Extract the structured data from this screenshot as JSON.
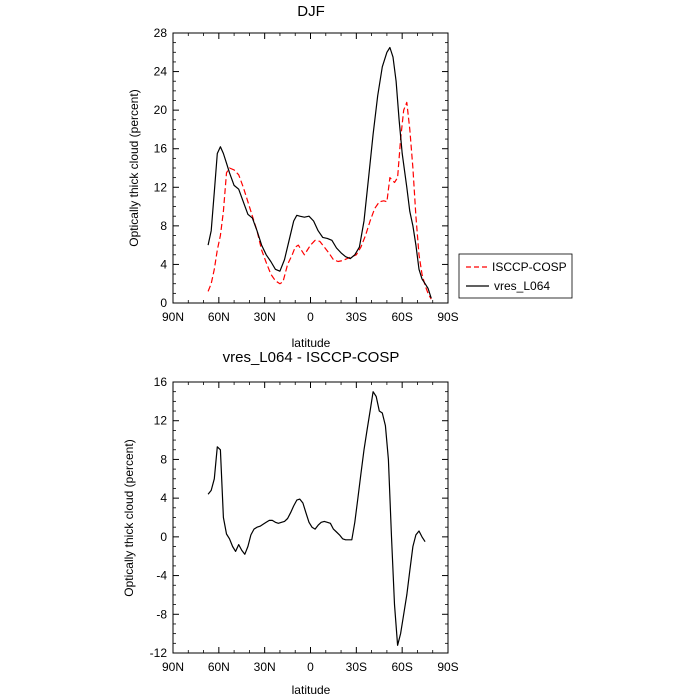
{
  "chart_data": [
    {
      "type": "line",
      "title": "DJF",
      "xlabel": "latitude",
      "ylabel": "Optically thick cloud (percent)",
      "xlim": [
        90,
        -90
      ],
      "ylim": [
        0,
        28
      ],
      "x_ticks": [
        90,
        60,
        30,
        0,
        -30,
        -60,
        -90
      ],
      "x_tick_labels": [
        "90N",
        "60N",
        "30N",
        "0",
        "30S",
        "60S",
        "90S"
      ],
      "y_ticks": [
        0,
        4,
        8,
        12,
        16,
        20,
        24,
        28
      ],
      "y_tick_labels": [
        "0",
        "4",
        "8",
        "12",
        "16",
        "20",
        "24",
        "28"
      ],
      "legend": {
        "placement": "right",
        "items": [
          "ISCCP-COSP",
          "vres_L064"
        ]
      },
      "series": [
        {
          "name": "ISCCP-COSP",
          "color": "#ff0000",
          "dash": "dashed",
          "points": [
            [
              67,
              1.2
            ],
            [
              65,
              2.0
            ],
            [
              63,
              3.5
            ],
            [
              61,
              5.5
            ],
            [
              59,
              7.0
            ],
            [
              57,
              9.5
            ],
            [
              55,
              13.5
            ],
            [
              53,
              14.0
            ],
            [
              50,
              13.8
            ],
            [
              47,
              13.3
            ],
            [
              44,
              12.0
            ],
            [
              41,
              10.5
            ],
            [
              38,
              9.0
            ],
            [
              35,
              7.5
            ],
            [
              32,
              5.5
            ],
            [
              29,
              4.2
            ],
            [
              26,
              3.0
            ],
            [
              23,
              2.3
            ],
            [
              20,
              2.0
            ],
            [
              18,
              2.2
            ],
            [
              15,
              4.0
            ],
            [
              12,
              5.0
            ],
            [
              10,
              5.8
            ],
            [
              8,
              6.0
            ],
            [
              6,
              5.5
            ],
            [
              4,
              5.0
            ],
            [
              2,
              5.5
            ],
            [
              0,
              6.0
            ],
            [
              -3,
              6.5
            ],
            [
              -6,
              6.4
            ],
            [
              -9,
              5.8
            ],
            [
              -12,
              5.2
            ],
            [
              -15,
              4.5
            ],
            [
              -18,
              4.3
            ],
            [
              -21,
              4.4
            ],
            [
              -24,
              4.6
            ],
            [
              -27,
              4.8
            ],
            [
              -30,
              5.0
            ],
            [
              -33,
              5.8
            ],
            [
              -36,
              7.0
            ],
            [
              -39,
              8.5
            ],
            [
              -42,
              9.8
            ],
            [
              -45,
              10.5
            ],
            [
              -48,
              10.6
            ],
            [
              -50,
              10.5
            ],
            [
              -52,
              13.0
            ],
            [
              -55,
              12.5
            ],
            [
              -57,
              13.0
            ],
            [
              -59,
              17.0
            ],
            [
              -61,
              20.0
            ],
            [
              -63,
              20.8
            ],
            [
              -65,
              18.0
            ],
            [
              -67,
              14.0
            ],
            [
              -69,
              9.0
            ],
            [
              -71,
              5.0
            ],
            [
              -73,
              3.0
            ],
            [
              -75,
              1.8
            ],
            [
              -77,
              1.0
            ],
            [
              -79,
              0.4
            ]
          ]
        },
        {
          "name": "vres_L064",
          "color": "#000000",
          "dash": "solid",
          "points": [
            [
              67,
              6.0
            ],
            [
              65,
              7.5
            ],
            [
              63,
              11.5
            ],
            [
              61,
              15.5
            ],
            [
              59,
              16.2
            ],
            [
              57,
              15.5
            ],
            [
              55,
              14.5
            ],
            [
              53,
              13.5
            ],
            [
              50,
              12.2
            ],
            [
              47,
              11.8
            ],
            [
              44,
              10.5
            ],
            [
              41,
              9.2
            ],
            [
              38,
              8.8
            ],
            [
              35,
              7.5
            ],
            [
              32,
              6.0
            ],
            [
              29,
              5.0
            ],
            [
              26,
              4.3
            ],
            [
              23,
              3.5
            ],
            [
              20,
              3.3
            ],
            [
              17,
              4.5
            ],
            [
              14,
              6.5
            ],
            [
              11,
              8.5
            ],
            [
              9,
              9.1
            ],
            [
              7,
              9.0
            ],
            [
              4,
              8.9
            ],
            [
              1,
              9.0
            ],
            [
              -2,
              8.5
            ],
            [
              -5,
              7.5
            ],
            [
              -8,
              6.8
            ],
            [
              -11,
              6.7
            ],
            [
              -14,
              6.5
            ],
            [
              -17,
              5.7
            ],
            [
              -20,
              5.2
            ],
            [
              -23,
              4.8
            ],
            [
              -26,
              4.6
            ],
            [
              -29,
              5.0
            ],
            [
              -32,
              5.8
            ],
            [
              -35,
              8.5
            ],
            [
              -38,
              13.0
            ],
            [
              -41,
              17.5
            ],
            [
              -44,
              21.5
            ],
            [
              -47,
              24.5
            ],
            [
              -50,
              26.0
            ],
            [
              -52,
              26.5
            ],
            [
              -54,
              25.5
            ],
            [
              -56,
              23.0
            ],
            [
              -58,
              19.0
            ],
            [
              -60,
              15.5
            ],
            [
              -63,
              12.0
            ],
            [
              -65,
              9.5
            ],
            [
              -67,
              8.0
            ],
            [
              -69,
              6.0
            ],
            [
              -71,
              3.5
            ],
            [
              -73,
              2.5
            ],
            [
              -75,
              2.0
            ],
            [
              -77,
              1.5
            ],
            [
              -79,
              0.5
            ]
          ]
        }
      ]
    },
    {
      "type": "line",
      "title": "vres_L064 - ISCCP-COSP",
      "xlabel": "latitude",
      "ylabel": "Optically thick cloud (percent)",
      "xlim": [
        90,
        -90
      ],
      "ylim": [
        -12,
        16
      ],
      "x_ticks": [
        90,
        60,
        30,
        0,
        -30,
        -60,
        -90
      ],
      "x_tick_labels": [
        "90N",
        "60N",
        "30N",
        "0",
        "30S",
        "60S",
        "90S"
      ],
      "y_ticks": [
        -12,
        -8,
        -4,
        0,
        4,
        8,
        12,
        16
      ],
      "y_tick_labels": [
        "-12",
        "-8",
        "-4",
        "0",
        "4",
        "8",
        "12",
        "16"
      ],
      "series": [
        {
          "color": "#000000",
          "dash": "solid",
          "points": [
            [
              67,
              4.4
            ],
            [
              65,
              4.8
            ],
            [
              63,
              6.0
            ],
            [
              61,
              9.3
            ],
            [
              59,
              9.0
            ],
            [
              57,
              2.0
            ],
            [
              55,
              0.3
            ],
            [
              53,
              -0.2
            ],
            [
              51,
              -1.0
            ],
            [
              49,
              -1.5
            ],
            [
              47,
              -0.8
            ],
            [
              45,
              -1.4
            ],
            [
              43,
              -1.8
            ],
            [
              41,
              -1.0
            ],
            [
              39,
              0.2
            ],
            [
              37,
              0.8
            ],
            [
              35,
              1.0
            ],
            [
              33,
              1.1
            ],
            [
              31,
              1.3
            ],
            [
              29,
              1.5
            ],
            [
              27,
              1.7
            ],
            [
              25,
              1.7
            ],
            [
              23,
              1.5
            ],
            [
              21,
              1.4
            ],
            [
              19,
              1.5
            ],
            [
              17,
              1.6
            ],
            [
              15,
              1.9
            ],
            [
              13,
              2.5
            ],
            [
              11,
              3.2
            ],
            [
              9,
              3.8
            ],
            [
              7,
              3.9
            ],
            [
              5,
              3.5
            ],
            [
              3,
              2.5
            ],
            [
              1,
              1.5
            ],
            [
              -1,
              1.0
            ],
            [
              -3,
              0.8
            ],
            [
              -5,
              1.2
            ],
            [
              -7,
              1.5
            ],
            [
              -9,
              1.6
            ],
            [
              -11,
              1.5
            ],
            [
              -13,
              1.4
            ],
            [
              -15,
              0.8
            ],
            [
              -17,
              0.5
            ],
            [
              -19,
              0.2
            ],
            [
              -21,
              -0.2
            ],
            [
              -23,
              -0.3
            ],
            [
              -25,
              -0.3
            ],
            [
              -27,
              -0.3
            ],
            [
              -29,
              1.5
            ],
            [
              -31,
              4.0
            ],
            [
              -33,
              6.5
            ],
            [
              -35,
              9.0
            ],
            [
              -37,
              11.0
            ],
            [
              -39,
              13.0
            ],
            [
              -41,
              15.0
            ],
            [
              -43,
              14.5
            ],
            [
              -45,
              13.0
            ],
            [
              -47,
              12.8
            ],
            [
              -49,
              11.5
            ],
            [
              -51,
              8.0
            ],
            [
              -53,
              0.0
            ],
            [
              -55,
              -7.0
            ],
            [
              -57,
              -11.2
            ],
            [
              -59,
              -10.0
            ],
            [
              -61,
              -8.0
            ],
            [
              -63,
              -6.0
            ],
            [
              -65,
              -3.5
            ],
            [
              -67,
              -1.0
            ],
            [
              -69,
              0.2
            ],
            [
              -71,
              0.6
            ],
            [
              -73,
              0.0
            ],
            [
              -75,
              -0.5
            ]
          ]
        }
      ]
    }
  ]
}
